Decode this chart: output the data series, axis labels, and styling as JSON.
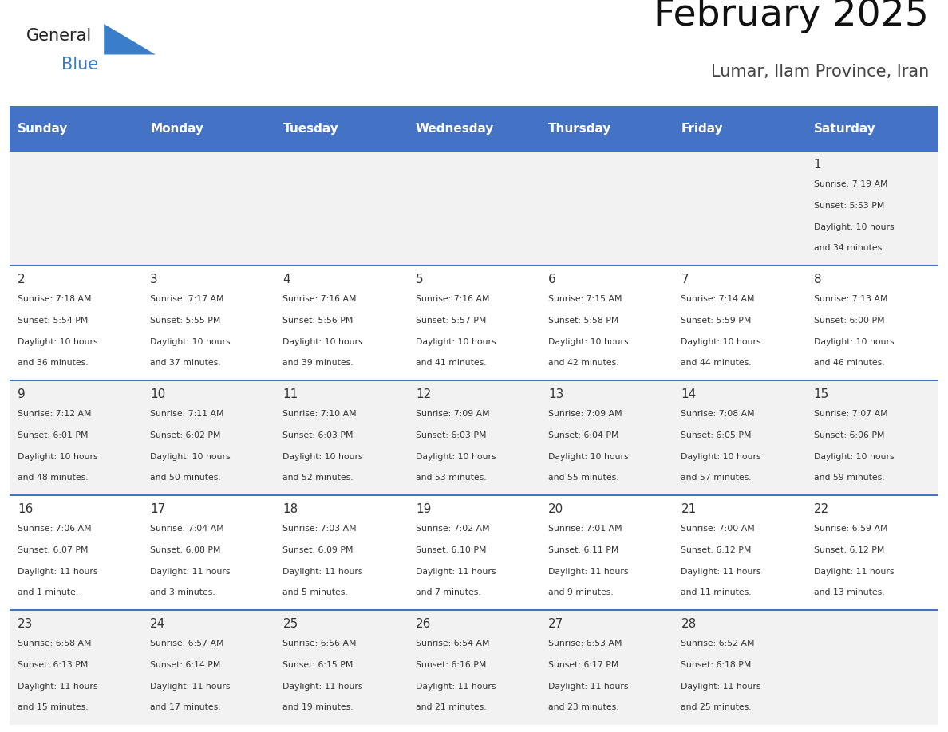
{
  "title": "February 2025",
  "subtitle": "Lumar, Ilam Province, Iran",
  "days_of_week": [
    "Sunday",
    "Monday",
    "Tuesday",
    "Wednesday",
    "Thursday",
    "Friday",
    "Saturday"
  ],
  "header_bg": "#4472C4",
  "header_text": "#FFFFFF",
  "row_bg_odd": "#F2F2F2",
  "row_bg_even": "#FFFFFF",
  "border_color": "#4472C4",
  "text_color": "#333333",
  "calendar": [
    [
      null,
      null,
      null,
      null,
      null,
      null,
      {
        "day": 1,
        "sunrise": "7:19 AM",
        "sunset": "5:53 PM",
        "daylight_line1": "10 hours",
        "daylight_line2": "and 34 minutes."
      }
    ],
    [
      {
        "day": 2,
        "sunrise": "7:18 AM",
        "sunset": "5:54 PM",
        "daylight_line1": "10 hours",
        "daylight_line2": "and 36 minutes."
      },
      {
        "day": 3,
        "sunrise": "7:17 AM",
        "sunset": "5:55 PM",
        "daylight_line1": "10 hours",
        "daylight_line2": "and 37 minutes."
      },
      {
        "day": 4,
        "sunrise": "7:16 AM",
        "sunset": "5:56 PM",
        "daylight_line1": "10 hours",
        "daylight_line2": "and 39 minutes."
      },
      {
        "day": 5,
        "sunrise": "7:16 AM",
        "sunset": "5:57 PM",
        "daylight_line1": "10 hours",
        "daylight_line2": "and 41 minutes."
      },
      {
        "day": 6,
        "sunrise": "7:15 AM",
        "sunset": "5:58 PM",
        "daylight_line1": "10 hours",
        "daylight_line2": "and 42 minutes."
      },
      {
        "day": 7,
        "sunrise": "7:14 AM",
        "sunset": "5:59 PM",
        "daylight_line1": "10 hours",
        "daylight_line2": "and 44 minutes."
      },
      {
        "day": 8,
        "sunrise": "7:13 AM",
        "sunset": "6:00 PM",
        "daylight_line1": "10 hours",
        "daylight_line2": "and 46 minutes."
      }
    ],
    [
      {
        "day": 9,
        "sunrise": "7:12 AM",
        "sunset": "6:01 PM",
        "daylight_line1": "10 hours",
        "daylight_line2": "and 48 minutes."
      },
      {
        "day": 10,
        "sunrise": "7:11 AM",
        "sunset": "6:02 PM",
        "daylight_line1": "10 hours",
        "daylight_line2": "and 50 minutes."
      },
      {
        "day": 11,
        "sunrise": "7:10 AM",
        "sunset": "6:03 PM",
        "daylight_line1": "10 hours",
        "daylight_line2": "and 52 minutes."
      },
      {
        "day": 12,
        "sunrise": "7:09 AM",
        "sunset": "6:03 PM",
        "daylight_line1": "10 hours",
        "daylight_line2": "and 53 minutes."
      },
      {
        "day": 13,
        "sunrise": "7:09 AM",
        "sunset": "6:04 PM",
        "daylight_line1": "10 hours",
        "daylight_line2": "and 55 minutes."
      },
      {
        "day": 14,
        "sunrise": "7:08 AM",
        "sunset": "6:05 PM",
        "daylight_line1": "10 hours",
        "daylight_line2": "and 57 minutes."
      },
      {
        "day": 15,
        "sunrise": "7:07 AM",
        "sunset": "6:06 PM",
        "daylight_line1": "10 hours",
        "daylight_line2": "and 59 minutes."
      }
    ],
    [
      {
        "day": 16,
        "sunrise": "7:06 AM",
        "sunset": "6:07 PM",
        "daylight_line1": "11 hours",
        "daylight_line2": "and 1 minute."
      },
      {
        "day": 17,
        "sunrise": "7:04 AM",
        "sunset": "6:08 PM",
        "daylight_line1": "11 hours",
        "daylight_line2": "and 3 minutes."
      },
      {
        "day": 18,
        "sunrise": "7:03 AM",
        "sunset": "6:09 PM",
        "daylight_line1": "11 hours",
        "daylight_line2": "and 5 minutes."
      },
      {
        "day": 19,
        "sunrise": "7:02 AM",
        "sunset": "6:10 PM",
        "daylight_line1": "11 hours",
        "daylight_line2": "and 7 minutes."
      },
      {
        "day": 20,
        "sunrise": "7:01 AM",
        "sunset": "6:11 PM",
        "daylight_line1": "11 hours",
        "daylight_line2": "and 9 minutes."
      },
      {
        "day": 21,
        "sunrise": "7:00 AM",
        "sunset": "6:12 PM",
        "daylight_line1": "11 hours",
        "daylight_line2": "and 11 minutes."
      },
      {
        "day": 22,
        "sunrise": "6:59 AM",
        "sunset": "6:12 PM",
        "daylight_line1": "11 hours",
        "daylight_line2": "and 13 minutes."
      }
    ],
    [
      {
        "day": 23,
        "sunrise": "6:58 AM",
        "sunset": "6:13 PM",
        "daylight_line1": "11 hours",
        "daylight_line2": "and 15 minutes."
      },
      {
        "day": 24,
        "sunrise": "6:57 AM",
        "sunset": "6:14 PM",
        "daylight_line1": "11 hours",
        "daylight_line2": "and 17 minutes."
      },
      {
        "day": 25,
        "sunrise": "6:56 AM",
        "sunset": "6:15 PM",
        "daylight_line1": "11 hours",
        "daylight_line2": "and 19 minutes."
      },
      {
        "day": 26,
        "sunrise": "6:54 AM",
        "sunset": "6:16 PM",
        "daylight_line1": "11 hours",
        "daylight_line2": "and 21 minutes."
      },
      {
        "day": 27,
        "sunrise": "6:53 AM",
        "sunset": "6:17 PM",
        "daylight_line1": "11 hours",
        "daylight_line2": "and 23 minutes."
      },
      {
        "day": 28,
        "sunrise": "6:52 AM",
        "sunset": "6:18 PM",
        "daylight_line1": "11 hours",
        "daylight_line2": "and 25 minutes."
      },
      null
    ]
  ],
  "logo_general_color": "#222222",
  "logo_blue_color": "#3A7DC9",
  "logo_triangle_color": "#3A7DC9"
}
